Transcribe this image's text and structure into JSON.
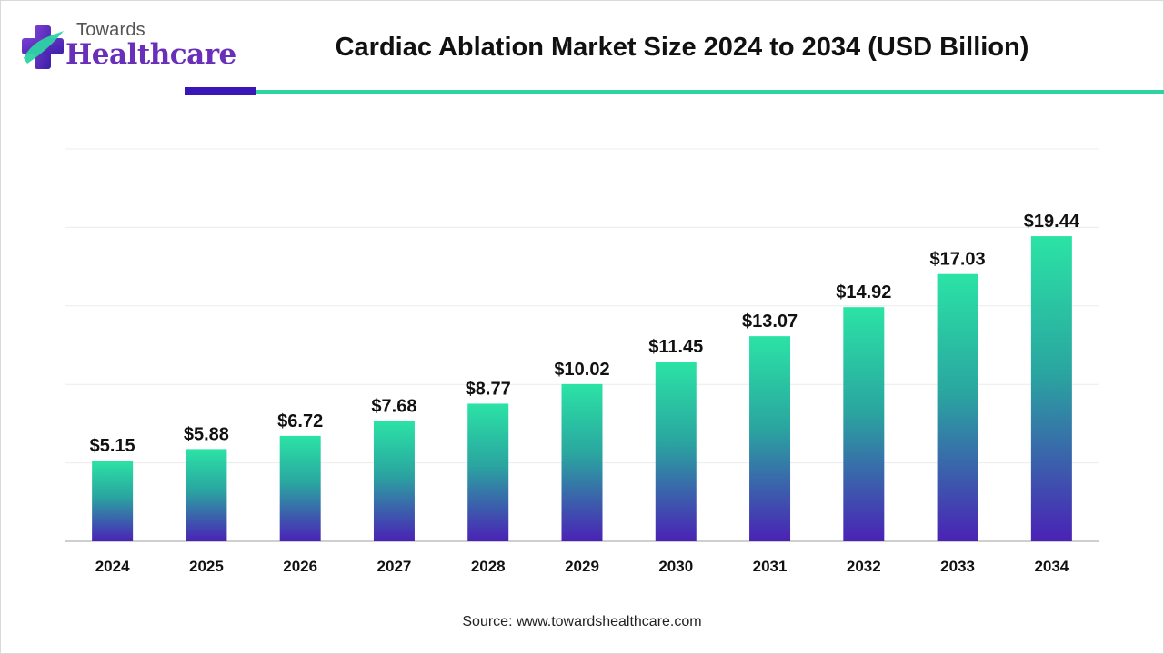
{
  "brand": {
    "line1": "Towards",
    "line2": "Healthcare"
  },
  "accent_colors": {
    "brand_purple": "#6a2fb8",
    "underline_purple": "#3a16b8",
    "underline_teal": "#2ed3a4",
    "bar_top": "#2be3a5",
    "bar_bottom": "#4a22b6"
  },
  "source_text": "Source: www.towardshealthcare.com",
  "chart_data": {
    "type": "bar",
    "title": "Cardiac Ablation Market Size 2024 to 2034 (USD Billion)",
    "xlabel": "",
    "ylabel": "",
    "categories": [
      "2024",
      "2025",
      "2026",
      "2027",
      "2028",
      "2029",
      "2030",
      "2031",
      "2032",
      "2033",
      "2034"
    ],
    "values": [
      5.15,
      5.88,
      6.72,
      7.68,
      8.77,
      10.02,
      11.45,
      13.07,
      14.92,
      17.03,
      19.44
    ],
    "value_labels": [
      "$5.15",
      "$5.88",
      "$6.72",
      "$7.68",
      "$8.77",
      "$10.02",
      "$11.45",
      "$13.07",
      "$14.92",
      "$17.03",
      "$19.44"
    ],
    "ylim": [
      0,
      25
    ],
    "grid": true,
    "legend": "none"
  }
}
